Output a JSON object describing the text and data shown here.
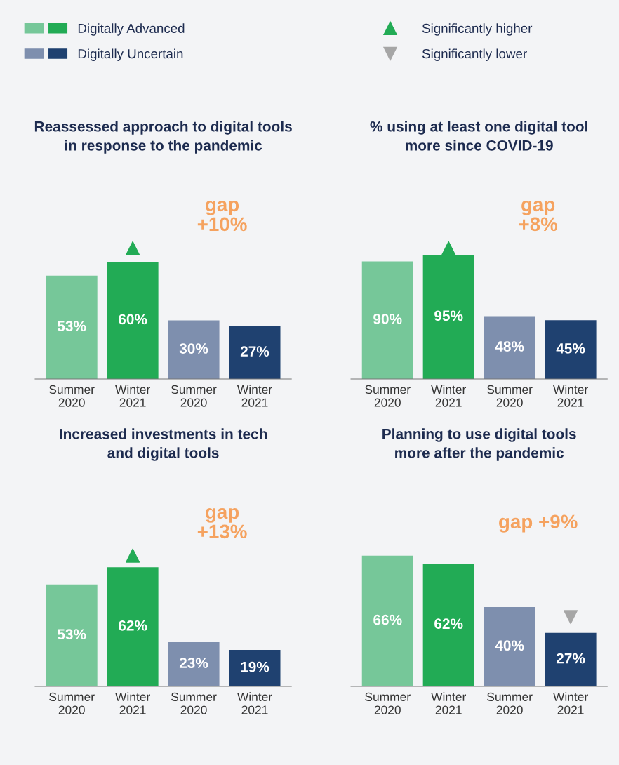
{
  "chart_data": [
    {
      "type": "bar",
      "title": "Reassessed approach to digital tools\nin response to the pandemic",
      "categories": [
        "Summer\n2020",
        "Winter\n2021",
        "Summer\n2020",
        "Winter\n2021"
      ],
      "tick_labels": "x",
      "legend": "top",
      "annotations": [
        "gap\n+10%"
      ],
      "series": [
        {
          "name": "Digitally Advanced",
          "colors": [
            "#76c799",
            "#22ab55",
            "#76c799",
            "#22ab55"
          ],
          "values": [
            53,
            60,
            null,
            null
          ],
          "value_labels": [
            "53%",
            "60%",
            null,
            null
          ]
        },
        {
          "name": "Digitally Uncertain",
          "colors": [
            "#7e8fae",
            "#1f4170",
            "#7e8fae",
            "#1f4170"
          ],
          "values": [
            null,
            null,
            30,
            27
          ],
          "value_labels": [
            null,
            null,
            "30%",
            "27%"
          ]
        },
        {
          "name": "Significantly higher",
          "type": "scatter",
          "marker": "triangle",
          "color": "#22ab55",
          "values": [
            null,
            67,
            null,
            null
          ]
        }
      ]
    },
    {
      "type": "bar",
      "title": "% using at least one digital tool\nmore since COVID-19",
      "categories": [
        "Summer\n2020",
        "Winter\n2021",
        "Summer\n2020",
        "Winter\n2021"
      ],
      "tick_labels": "x",
      "annotations": [
        "gap\n+8%"
      ],
      "series": [
        {
          "colors": [
            "#76c799",
            "#22ab55",
            "#76c799",
            "#22ab55"
          ],
          "values": [
            90,
            95,
            null,
            null
          ],
          "value_labels": [
            "90%",
            "95%",
            null,
            null
          ]
        },
        {
          "colors": [
            "#7e8fae",
            "#1f4170",
            "#7e8fae",
            "#1f4170"
          ],
          "values": [
            null,
            null,
            48,
            45
          ],
          "value_labels": [
            null,
            null,
            "48%",
            "45%"
          ]
        },
        {
          "type": "scatter",
          "marker": "triangle",
          "color": "#22ab55",
          "values": [
            null,
            100,
            null,
            null
          ]
        }
      ]
    },
    {
      "type": "bar",
      "title": "Increased investments in tech\nand digital tools",
      "categories": [
        "Summer\n2020",
        "Winter\n2021",
        "Summer\n2020",
        "Winter\n2021"
      ],
      "tick_labels": "x",
      "annotations": [
        "gap\n+13%"
      ],
      "series": [
        {
          "colors": [
            "#76c799",
            "#22ab55",
            "#76c799",
            "#22ab55"
          ],
          "values": [
            53,
            62,
            null,
            null
          ],
          "value_labels": [
            "53%",
            "62%",
            null,
            null
          ]
        },
        {
          "colors": [
            "#7e8fae",
            "#1f4170",
            "#7e8fae",
            "#1f4170"
          ],
          "values": [
            null,
            null,
            23,
            19
          ],
          "value_labels": [
            null,
            null,
            "23%",
            "19%"
          ]
        },
        {
          "type": "scatter",
          "marker": "triangle",
          "color": "#22ab55",
          "values": [
            null,
            68,
            null,
            null
          ]
        }
      ]
    },
    {
      "type": "bar",
      "title": "Planning to use digital tools\nmore after the pandemic",
      "categories": [
        "Summer\n2020",
        "Winter\n2021",
        "Summer\n2020",
        "Winter\n2021"
      ],
      "tick_labels": "x",
      "annotations": [
        "gap +9%"
      ],
      "series": [
        {
          "colors": [
            "#76c799",
            "#22ab55",
            "#76c799",
            "#22ab55"
          ],
          "values": [
            66,
            62,
            null,
            null
          ],
          "value_labels": [
            "66%",
            "62%",
            null,
            null
          ]
        },
        {
          "colors": [
            "#7e8fae",
            "#1f4170",
            "#7e8fae",
            "#1f4170"
          ],
          "values": [
            null,
            null,
            40,
            27
          ],
          "value_labels": [
            null,
            null,
            "40%",
            "27%"
          ]
        },
        {
          "name": "Significantly lower",
          "type": "scatter",
          "marker": "triangle_down",
          "color": "#a6a6a6",
          "values": [
            null,
            null,
            null,
            35
          ]
        }
      ]
    }
  ]
}
